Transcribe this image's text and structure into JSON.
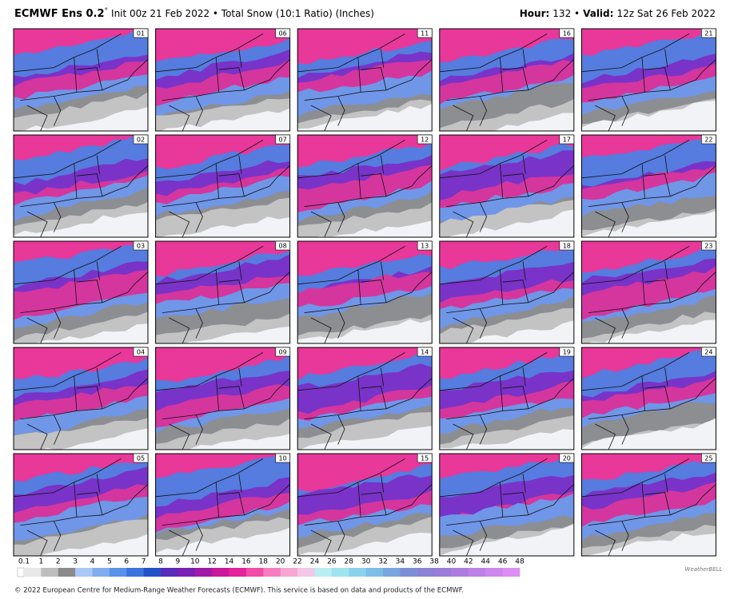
{
  "header": {
    "model": "ECMWF Ens 0.2",
    "degree": "°",
    "run": "Init 00z 21 Feb 2022 • Total Snow (10:1 Ratio) (Inches)",
    "hour_label": "Hour:",
    "hour": "132 •",
    "valid_label": "Valid:",
    "valid": "12z Sat 26 Feb 2022"
  },
  "members": [
    "01",
    "02",
    "03",
    "04",
    "05",
    "06",
    "07",
    "08",
    "09",
    "10",
    "11",
    "12",
    "13",
    "14",
    "15",
    "16",
    "17",
    "18",
    "19",
    "20",
    "21",
    "22",
    "23",
    "24",
    "25"
  ],
  "colorbar": {
    "labels": [
      "0.1",
      "1",
      "2",
      "3",
      "4",
      "5",
      "6",
      "7",
      "8",
      "9",
      "10",
      "12",
      "14",
      "16",
      "18",
      "20",
      "22",
      "24",
      "26",
      "28",
      "30",
      "32",
      "34",
      "36",
      "38",
      "40",
      "42",
      "44",
      "46",
      "48"
    ],
    "colors": [
      "#e8e8e8",
      "#bdbdbd",
      "#8a8a8a",
      "#a9c8f5",
      "#7fadf0",
      "#5b91e8",
      "#3b73dc",
      "#2150c8",
      "#5a2bb8",
      "#7a1fb3",
      "#a01aa8",
      "#c9189a",
      "#e3239a",
      "#f04ca8",
      "#f67cbf",
      "#f7a6d2",
      "#f2c6e6",
      "#b8eef2",
      "#9fe3ef",
      "#8ad2ec",
      "#7dbde6",
      "#7aa6df",
      "#7c8fd6",
      "#8a82d6",
      "#9b7cd9",
      "#ac7ddf",
      "#bd80e6",
      "#cc86ec",
      "#dc8ef2"
    ]
  },
  "logo": "WeatherBELL",
  "footer": "© 2022 European Centre for Medium-Range Weather Forecasts (ECMWF). This service is based on data and products of the ECMWF."
}
